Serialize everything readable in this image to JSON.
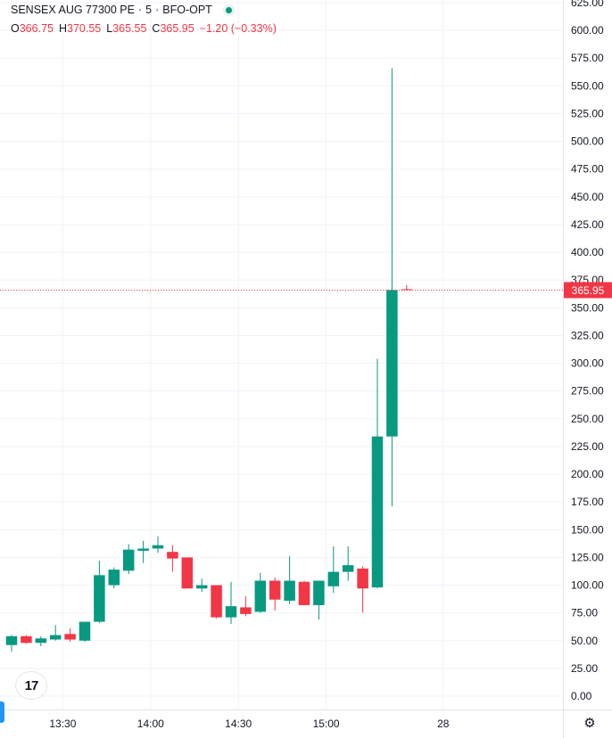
{
  "legend": {
    "symbol": "SENSEX AUG 77300 PE",
    "sep1": "·",
    "interval": "5",
    "sep2": "·",
    "exchange": "BFO-OPT",
    "open_label": "O",
    "open_value": "366.75",
    "high_label": "H",
    "high_value": "370.55",
    "low_label": "L",
    "low_value": "365.55",
    "close_label": "C",
    "close_value": "365.95",
    "change": "−1.20 (−0.33%)"
  },
  "logo": {
    "text": "17",
    "icon": "tradingview-logo"
  },
  "settings": {
    "icon": "gear-icon"
  },
  "colors": {
    "up": "#089981",
    "down": "#f23645",
    "grid": "#f0f3fa",
    "text": "#131722"
  },
  "chart_data": {
    "type": "candlestick",
    "y_range": [
      0,
      625
    ],
    "y_ticks": [
      "625.00",
      "600.00",
      "575.00",
      "550.00",
      "525.00",
      "500.00",
      "475.00",
      "450.00",
      "425.00",
      "400.00",
      "375.00",
      "350.00",
      "325.00",
      "300.00",
      "275.00",
      "250.00",
      "225.00",
      "200.00",
      "175.00",
      "150.00",
      "125.00",
      "100.00",
      "75.00",
      "50.00",
      "25.00",
      "0.00"
    ],
    "x_ticks": [
      {
        "label": "13:30",
        "index": 3.5
      },
      {
        "label": "14:00",
        "index": 9.5
      },
      {
        "label": "14:30",
        "index": 15.5
      },
      {
        "label": "15:00",
        "index": 21.5
      },
      {
        "label": "28",
        "index": 29.5
      }
    ],
    "last_price_label": "365.95",
    "last_price": 365.95,
    "candles": [
      {
        "o": 46,
        "h": 55,
        "l": 40,
        "c": 54
      },
      {
        "o": 54,
        "h": 55,
        "l": 47,
        "c": 48
      },
      {
        "o": 48,
        "h": 54,
        "l": 45,
        "c": 52
      },
      {
        "o": 51,
        "h": 64,
        "l": 50,
        "c": 55
      },
      {
        "o": 56,
        "h": 61,
        "l": 49,
        "c": 51
      },
      {
        "o": 50,
        "h": 67,
        "l": 49,
        "c": 67
      },
      {
        "o": 67,
        "h": 122,
        "l": 66,
        "c": 109
      },
      {
        "o": 100,
        "h": 116,
        "l": 97,
        "c": 114
      },
      {
        "o": 113,
        "h": 137,
        "l": 110,
        "c": 132
      },
      {
        "o": 131,
        "h": 140,
        "l": 120,
        "c": 133
      },
      {
        "o": 133,
        "h": 144,
        "l": 129,
        "c": 136
      },
      {
        "o": 130,
        "h": 136,
        "l": 112,
        "c": 124
      },
      {
        "o": 125,
        "h": 124,
        "l": 97,
        "c": 97
      },
      {
        "o": 97,
        "h": 106,
        "l": 94,
        "c": 100
      },
      {
        "o": 100,
        "h": 100,
        "l": 70,
        "c": 71
      },
      {
        "o": 71,
        "h": 103,
        "l": 65,
        "c": 81
      },
      {
        "o": 80,
        "h": 90,
        "l": 72,
        "c": 74
      },
      {
        "o": 76,
        "h": 111,
        "l": 75,
        "c": 104
      },
      {
        "o": 104,
        "h": 107,
        "l": 77,
        "c": 87
      },
      {
        "o": 86,
        "h": 126,
        "l": 83,
        "c": 104
      },
      {
        "o": 103,
        "h": 104,
        "l": 82,
        "c": 82
      },
      {
        "o": 82,
        "h": 104,
        "l": 69,
        "c": 104
      },
      {
        "o": 99,
        "h": 135,
        "l": 93,
        "c": 112
      },
      {
        "o": 112,
        "h": 135,
        "l": 104,
        "c": 118
      },
      {
        "o": 115,
        "h": 117,
        "l": 75,
        "c": 97
      },
      {
        "o": 98,
        "h": 304,
        "l": 97,
        "c": 234
      },
      {
        "o": 234,
        "h": 566,
        "l": 171,
        "c": 366
      },
      {
        "o": 366.75,
        "h": 370.55,
        "l": 365.55,
        "c": 365.95
      }
    ]
  }
}
